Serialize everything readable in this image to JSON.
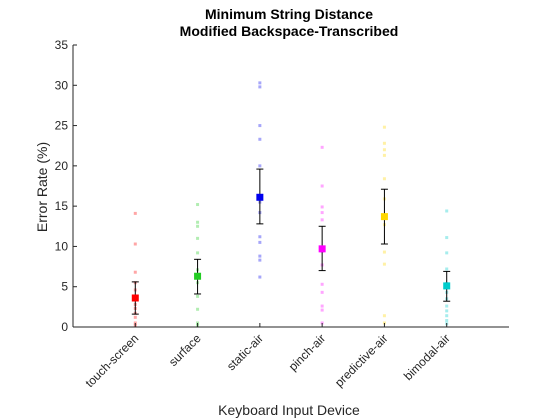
{
  "chart_data": {
    "type": "scatter",
    "title": [
      "Minimum String Distance",
      "Modified Backspace-Transcribed"
    ],
    "xlabel": "Keyboard Input Device",
    "ylabel": "Error Rate (%)",
    "ylim": [
      0,
      35
    ],
    "yticks": [
      0,
      5,
      10,
      15,
      20,
      25,
      30,
      35
    ],
    "grid": false,
    "categories": [
      "touch-screen",
      "surface",
      "static-air",
      "pinch-air",
      "predictive-air",
      "bimodal-air"
    ],
    "series": [
      {
        "category": "touch-screen",
        "color": "#ff0000",
        "mean": 3.6,
        "error_low": 1.6,
        "error_high": 5.6,
        "participants": [
          14.1,
          10.3,
          6.8,
          5.5,
          4.6,
          3.7,
          2.8,
          2.3,
          1.7,
          1.2,
          0.5,
          0.2
        ]
      },
      {
        "category": "surface",
        "color": "#22cc22",
        "mean": 6.3,
        "error_low": 4.1,
        "error_high": 8.4,
        "participants": [
          15.2,
          13.0,
          12.5,
          11.0,
          9.2,
          7.1,
          6.5,
          5.5,
          3.8,
          2.2,
          0.5,
          0.2
        ]
      },
      {
        "category": "static-air",
        "color": "#0000ee",
        "mean": 16.1,
        "error_low": 12.8,
        "error_high": 19.6,
        "participants": [
          30.3,
          29.8,
          25.0,
          23.3,
          20.0,
          15.5,
          14.2,
          11.2,
          10.5,
          8.8,
          8.3,
          6.2
        ]
      },
      {
        "category": "pinch-air",
        "color": "#ff00ff",
        "mean": 9.7,
        "error_low": 7.0,
        "error_high": 12.5,
        "participants": [
          22.3,
          17.5,
          14.9,
          14.2,
          13.3,
          9.4,
          7.7,
          5.3,
          4.3,
          2.6,
          2.1,
          0.5
        ]
      },
      {
        "category": "predictive-air",
        "color": "#ffd700",
        "mean": 13.7,
        "error_low": 10.3,
        "error_high": 17.1,
        "participants": [
          24.8,
          22.8,
          22.0,
          21.3,
          18.4,
          15.9,
          13.5,
          12.7,
          9.3,
          7.8,
          1.4,
          0.5
        ]
      },
      {
        "category": "bimodal-air",
        "color": "#00cccc",
        "mean": 5.1,
        "error_low": 3.2,
        "error_high": 6.9,
        "participants": [
          14.4,
          11.1,
          9.2,
          7.2,
          5.4,
          4.3,
          3.5,
          2.6,
          2.0,
          1.4,
          0.8,
          0.4
        ]
      }
    ]
  }
}
